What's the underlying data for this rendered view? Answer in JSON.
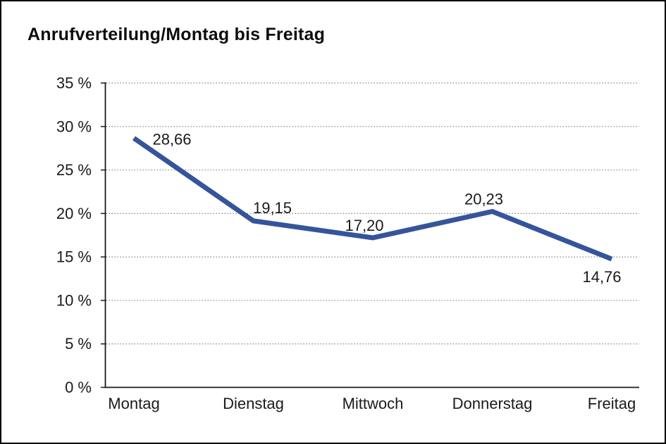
{
  "window": {
    "background_color": "#ffffff",
    "border_color": "#000000"
  },
  "chart_data": {
    "type": "line",
    "title": "Anrufverteilung/Montag bis Freitag",
    "categories": [
      "Montag",
      "Dienstag",
      "Mittwoch",
      "Donnerstag",
      "Freitag"
    ],
    "series": [
      {
        "name": "Anrufverteilung",
        "values": [
          28.66,
          19.15,
          17.2,
          20.23,
          14.76
        ],
        "value_labels": [
          "28,66",
          "19,15",
          "17,20",
          "20,23",
          "14,76"
        ]
      }
    ],
    "xlabel": "",
    "ylabel": "",
    "ylim": [
      0,
      35
    ],
    "y_step": 5,
    "y_tick_labels": [
      "35 %",
      "30 %",
      "25 %",
      "20 %",
      "15 %",
      "10 %",
      "5 %",
      "0 %"
    ],
    "grid": "horizontal-dotted",
    "legend_position": "none",
    "line_color": "#35549B",
    "axis_color": "#1a1a1a",
    "gridline_color": "#7a7a7a",
    "label_color": "#1a1a1a"
  }
}
